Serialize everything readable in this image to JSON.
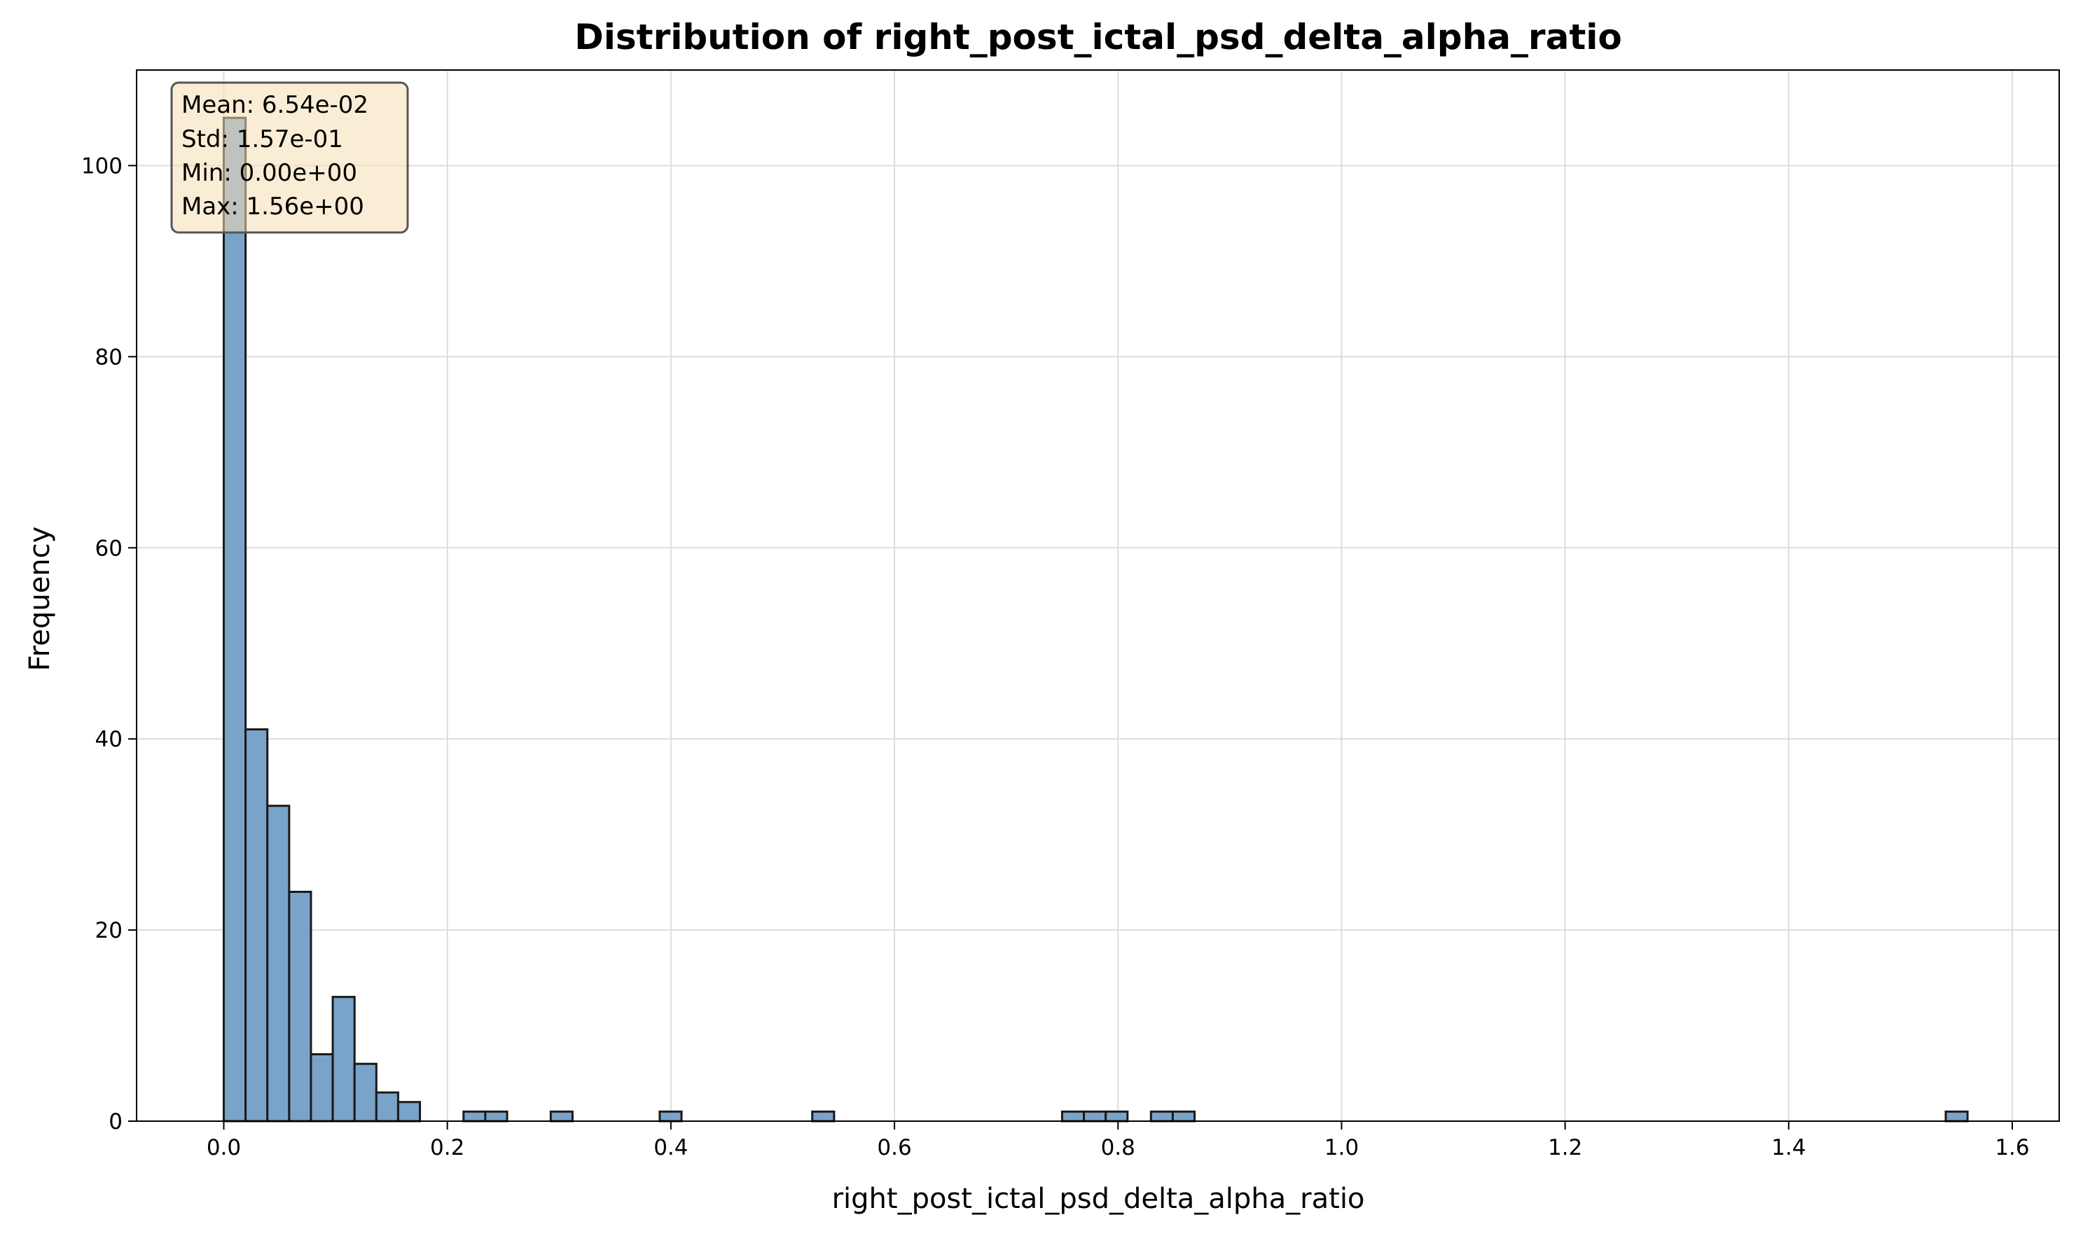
{
  "chart_data": {
    "type": "bar",
    "title": "Distribution of right_post_ictal_psd_delta_alpha_ratio",
    "xlabel": "right_post_ictal_psd_delta_alpha_ratio",
    "ylabel": "Frequency",
    "xlim": [
      -0.078,
      1.56
    ],
    "ylim": [
      0,
      110
    ],
    "xticks": [
      "0.0",
      "0.2",
      "0.4",
      "0.6",
      "0.8",
      "1.0",
      "1.2",
      "1.4",
      "1.6"
    ],
    "yticks": [
      "0",
      "20",
      "40",
      "60",
      "80",
      "100"
    ],
    "grid": true,
    "bar_color": "#7aa3c9",
    "edge_color": "#1a1a1a",
    "bin_width": 0.0195,
    "bins": [
      {
        "x0": 0.0,
        "count": 105
      },
      {
        "x0": 0.0195,
        "count": 41
      },
      {
        "x0": 0.039,
        "count": 33
      },
      {
        "x0": 0.0585,
        "count": 24
      },
      {
        "x0": 0.078,
        "count": 7
      },
      {
        "x0": 0.0975,
        "count": 13
      },
      {
        "x0": 0.117,
        "count": 6
      },
      {
        "x0": 0.1365,
        "count": 3
      },
      {
        "x0": 0.156,
        "count": 2
      },
      {
        "x0": 0.2145,
        "count": 1
      },
      {
        "x0": 0.234,
        "count": 1
      },
      {
        "x0": 0.2925,
        "count": 1
      },
      {
        "x0": 0.39,
        "count": 1
      },
      {
        "x0": 0.5265,
        "count": 1
      },
      {
        "x0": 0.75,
        "count": 1
      },
      {
        "x0": 0.7695,
        "count": 1
      },
      {
        "x0": 0.789,
        "count": 1
      },
      {
        "x0": 0.8295,
        "count": 1
      },
      {
        "x0": 0.849,
        "count": 1
      },
      {
        "x0": 1.5405,
        "count": 1
      }
    ],
    "stats_box": {
      "lines": [
        "Mean: 6.54e-02",
        "Std: 1.57e-01",
        "Min: 0.00e+00",
        "Max: 1.56e+00"
      ],
      "background": "#f5deb3",
      "placement": "top-left"
    }
  }
}
